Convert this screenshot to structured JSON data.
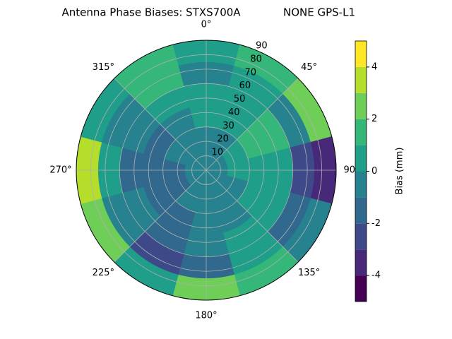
{
  "chart_data": {
    "type": "polar-contour",
    "title": "Antenna Phase Biases: STXS700A",
    "subtitle": "NONE GPS-L1",
    "colorbar_label": "Bias (mm)",
    "azimuth": [
      0,
      30,
      60,
      90,
      120,
      150,
      180,
      210,
      240,
      270,
      300,
      330
    ],
    "zenith_edges": [
      0,
      15,
      30,
      45,
      60,
      75,
      90
    ],
    "values": [
      [
        -0.5,
        -0.5,
        -0.5,
        -0.5,
        -0.5,
        -0.5,
        -0.5,
        -0.5,
        -0.5,
        -0.5,
        -0.5,
        -0.5
      ],
      [
        -0.5,
        -0.5,
        0.5,
        0.5,
        -0.5,
        -0.5,
        -0.5,
        -0.5,
        -1.5,
        -1.5,
        -0.5,
        -0.5
      ],
      [
        0.5,
        0.5,
        1.5,
        0.5,
        0.5,
        -0.5,
        -0.5,
        -1.5,
        -1.5,
        -1.5,
        -1.5,
        -0.5
      ],
      [
        0.5,
        0.5,
        1.5,
        0.5,
        0.5,
        0.5,
        -0.5,
        -1.5,
        -0.5,
        -1.5,
        -0.5,
        0.5
      ],
      [
        -0.5,
        0.5,
        -0.5,
        -2.5,
        -1.5,
        0.5,
        -1.5,
        -2.5,
        -0.5,
        0.5,
        -0.5,
        1.5
      ],
      [
        0.5,
        1.5,
        2.5,
        -3.5,
        -0.5,
        1.5,
        2.5,
        0.5,
        2.5,
        3.5,
        0.5,
        1.5
      ]
    ],
    "levels": [
      -5,
      -4,
      -3,
      -2,
      -1,
      0,
      1,
      2,
      3,
      4,
      5
    ],
    "colors": [
      "#440154",
      "#482878",
      "#3e4989",
      "#31688e",
      "#26828e",
      "#1f9e89",
      "#35b779",
      "#6ece58",
      "#b5de2b",
      "#fde725"
    ],
    "theta_ticks": [
      {
        "value": 0,
        "label": "0°"
      },
      {
        "value": 45,
        "label": "45°"
      },
      {
        "value": 90,
        "label": "90°"
      },
      {
        "value": 135,
        "label": "135°"
      },
      {
        "value": 180,
        "label": "180°"
      },
      {
        "value": 225,
        "label": "225°"
      },
      {
        "value": 270,
        "label": "270°"
      },
      {
        "value": 315,
        "label": "315°"
      }
    ],
    "rticks": [
      10,
      20,
      30,
      40,
      50,
      60,
      70,
      80,
      90
    ],
    "rlim": [
      0,
      90
    ],
    "colorbar_ticks": [
      -4,
      -2,
      0,
      2,
      4
    ]
  }
}
